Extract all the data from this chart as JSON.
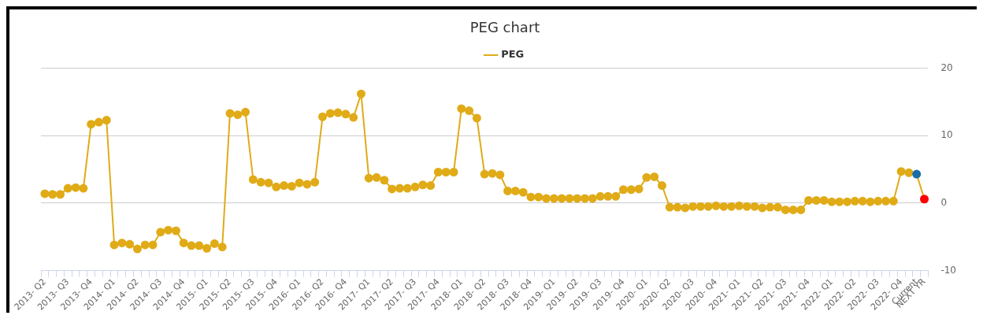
{
  "chart_data": {
    "type": "line",
    "title": "PEG chart",
    "categories": [
      "2013- Q2",
      null,
      null,
      "2013- Q3",
      null,
      null,
      "2013- Q4",
      null,
      null,
      "2014- Q1",
      null,
      null,
      "2014- Q2",
      null,
      null,
      "2014- Q3",
      null,
      null,
      "2014- Q4",
      null,
      null,
      "2015- Q1",
      null,
      null,
      "2015- Q2",
      null,
      null,
      "2015- Q3",
      null,
      null,
      "2015- Q4",
      null,
      null,
      "2016- Q1",
      null,
      null,
      "2016- Q2",
      null,
      null,
      "2016- Q4",
      null,
      null,
      "2017- Q1",
      null,
      null,
      "2017- Q2",
      null,
      null,
      "2017- Q3",
      null,
      null,
      "2017- Q4",
      null,
      null,
      "2018- Q1",
      null,
      null,
      "2018- Q2",
      null,
      null,
      "2018- Q3",
      null,
      null,
      "2018- Q4",
      null,
      null,
      "2019- Q1",
      null,
      null,
      "2019- Q2",
      null,
      null,
      "2019- Q3",
      null,
      null,
      "2019- Q4",
      null,
      null,
      "2020- Q1",
      null,
      null,
      "2020- Q2",
      null,
      null,
      "2020- Q3",
      null,
      null,
      "2020- Q4",
      null,
      null,
      "2021- Q1",
      null,
      null,
      "2021- Q2",
      null,
      null,
      "2021- Q3",
      null,
      null,
      "2021- Q4",
      null,
      null,
      "2022- Q1",
      null,
      null,
      "2022- Q2",
      null,
      null,
      "2022- Q3",
      null,
      null,
      "2022- Q4",
      null,
      "Current",
      "NEXT YR"
    ],
    "series": [
      {
        "name": "PEG",
        "color": "#e0ab17",
        "values": [
          1.4,
          1.3,
          1.3,
          2.2,
          2.3,
          2.2,
          11.7,
          12.0,
          12.3,
          -6.2,
          -5.9,
          -6.1,
          -6.8,
          -6.2,
          -6.2,
          -4.3,
          -4.0,
          -4.1,
          -5.9,
          -6.3,
          -6.3,
          -6.7,
          -6.0,
          -6.5,
          13.3,
          13.1,
          13.5,
          3.5,
          3.1,
          3.0,
          2.4,
          2.6,
          2.5,
          3.0,
          2.8,
          3.1,
          12.8,
          13.3,
          13.4,
          13.2,
          12.7,
          16.2,
          3.7,
          3.8,
          3.4,
          2.1,
          2.2,
          2.2,
          2.4,
          2.7,
          2.6,
          4.6,
          4.6,
          4.6,
          14.0,
          13.7,
          12.6,
          4.3,
          4.4,
          4.2,
          1.8,
          1.8,
          1.6,
          0.9,
          0.9,
          0.7,
          0.7,
          0.7,
          0.7,
          0.7,
          0.7,
          0.7,
          1.0,
          1.0,
          1.0,
          2.0,
          2.0,
          2.1,
          3.8,
          3.9,
          2.6,
          -0.6,
          -0.6,
          -0.7,
          -0.5,
          -0.5,
          -0.5,
          -0.4,
          -0.5,
          -0.5,
          -0.4,
          -0.5,
          -0.5,
          -0.7,
          -0.6,
          -0.6,
          -1.0,
          -1.0,
          -1.0,
          0.4,
          0.4,
          0.4,
          0.2,
          0.2,
          0.2,
          0.3,
          0.3,
          0.2,
          0.3,
          0.3,
          0.3,
          4.7,
          4.5,
          4.3,
          0.6
        ],
        "colors": [
          "#e0ab17",
          "#e0ab17",
          "#e0ab17",
          "#e0ab17",
          "#e0ab17",
          "#e0ab17",
          "#e0ab17",
          "#e0ab17",
          "#e0ab17",
          "#e0ab17",
          "#e0ab17",
          "#e0ab17",
          "#e0ab17",
          "#e0ab17",
          "#e0ab17",
          "#e0ab17",
          "#e0ab17",
          "#e0ab17",
          "#e0ab17",
          "#e0ab17",
          "#e0ab17",
          "#e0ab17",
          "#e0ab17",
          "#e0ab17",
          "#e0ab17",
          "#e0ab17",
          "#e0ab17",
          "#e0ab17",
          "#e0ab17",
          "#e0ab17",
          "#e0ab17",
          "#e0ab17",
          "#e0ab17",
          "#e0ab17",
          "#e0ab17",
          "#e0ab17",
          "#e0ab17",
          "#e0ab17",
          "#e0ab17",
          "#e0ab17",
          "#e0ab17",
          "#e0ab17",
          "#e0ab17",
          "#e0ab17",
          "#e0ab17",
          "#e0ab17",
          "#e0ab17",
          "#e0ab17",
          "#e0ab17",
          "#e0ab17",
          "#e0ab17",
          "#e0ab17",
          "#e0ab17",
          "#e0ab17",
          "#e0ab17",
          "#e0ab17",
          "#e0ab17",
          "#e0ab17",
          "#e0ab17",
          "#e0ab17",
          "#e0ab17",
          "#e0ab17",
          "#e0ab17",
          "#e0ab17",
          "#e0ab17",
          "#e0ab17",
          "#e0ab17",
          "#e0ab17",
          "#e0ab17",
          "#e0ab17",
          "#e0ab17",
          "#e0ab17",
          "#e0ab17",
          "#e0ab17",
          "#e0ab17",
          "#e0ab17",
          "#e0ab17",
          "#e0ab17",
          "#e0ab17",
          "#e0ab17",
          "#e0ab17",
          "#e0ab17",
          "#e0ab17",
          "#e0ab17",
          "#e0ab17",
          "#e0ab17",
          "#e0ab17",
          "#e0ab17",
          "#e0ab17",
          "#e0ab17",
          "#e0ab17",
          "#e0ab17",
          "#e0ab17",
          "#e0ab17",
          "#e0ab17",
          "#e0ab17",
          "#e0ab17",
          "#e0ab17",
          "#e0ab17",
          "#e0ab17",
          "#e0ab17",
          "#e0ab17",
          "#e0ab17",
          "#e0ab17",
          "#e0ab17",
          "#e0ab17",
          "#e0ab17",
          "#e0ab17",
          "#e0ab17",
          "#e0ab17",
          "#e0ab17",
          "#e0ab17",
          "#e0ab17",
          "#1a6ea8",
          "#ff0000"
        ]
      }
    ],
    "ylim": [
      -10,
      20
    ],
    "yticks": [
      -10,
      0,
      10,
      20
    ],
    "grid": "y",
    "legend": "top",
    "marker": "circle"
  }
}
